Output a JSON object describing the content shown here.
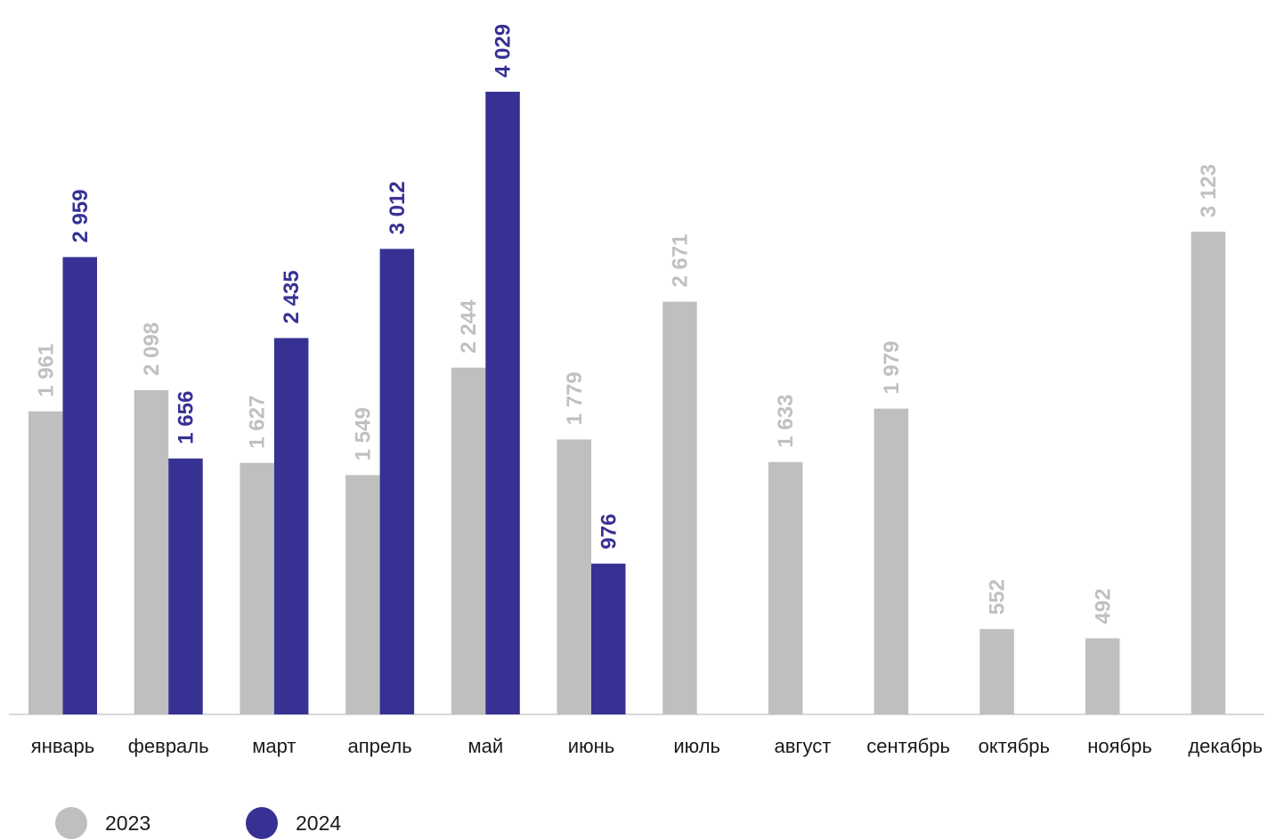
{
  "chart_data": {
    "type": "bar",
    "categories": [
      "январь",
      "февраль",
      "март",
      "апрель",
      "май",
      "июнь",
      "июль",
      "август",
      "сентябрь",
      "октябрь",
      "ноябрь",
      "декабрь"
    ],
    "series": [
      {
        "name": "2023",
        "color": "#bfbfbf",
        "label_color": "#c0c0c0",
        "values": [
          1961,
          2098,
          1627,
          1549,
          2244,
          1779,
          2671,
          1633,
          1979,
          552,
          492,
          3123
        ],
        "labels": [
          "1 961",
          "2 098",
          "1 627",
          "1 549",
          "2 244",
          "1 779",
          "2 671",
          "1 633",
          "1 979",
          "552",
          "492",
          "3 123"
        ]
      },
      {
        "name": "2024",
        "color": "#373194",
        "label_color": "#373194",
        "values": [
          2959,
          1656,
          2435,
          3012,
          4029,
          976,
          null,
          null,
          null,
          null,
          null,
          null
        ],
        "labels": [
          "2 959",
          "1 656",
          "2 435",
          "3 012",
          "4 029",
          "976",
          "",
          "",
          "",
          "",
          "",
          ""
        ]
      }
    ],
    "ylim": [
      0,
      4029
    ],
    "grid": false,
    "axis_color": "#d9d9d9",
    "legend_position": "bottom-left"
  }
}
